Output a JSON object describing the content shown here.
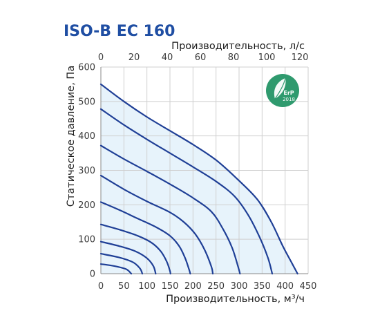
{
  "chart_data": {
    "type": "line",
    "title": "ISO-B EC 160",
    "xlabel": "Производительность, м³/ч",
    "x2label": "Производительность, л/с",
    "ylabel": "Статическое давление, Па",
    "xlim": [
      0,
      450
    ],
    "x2lim": [
      0,
      125
    ],
    "ylim": [
      0,
      600
    ],
    "xticks": [
      0,
      50,
      100,
      150,
      200,
      250,
      300,
      350,
      400,
      450
    ],
    "x2ticks": [
      0,
      20,
      40,
      60,
      80,
      100,
      120
    ],
    "yticks": [
      0,
      100,
      200,
      300,
      400,
      500,
      600
    ],
    "grid": true,
    "series": [
      {
        "points": [
          [
            0,
            550
          ],
          [
            50,
            500
          ],
          [
            100,
            455
          ],
          [
            150,
            415
          ],
          [
            200,
            375
          ],
          [
            250,
            330
          ],
          [
            300,
            270
          ],
          [
            340,
            215
          ],
          [
            370,
            150
          ],
          [
            395,
            80
          ],
          [
            415,
            30
          ],
          [
            427,
            0
          ]
        ]
      },
      {
        "points": [
          [
            0,
            478
          ],
          [
            50,
            432
          ],
          [
            100,
            390
          ],
          [
            150,
            350
          ],
          [
            200,
            310
          ],
          [
            250,
            268
          ],
          [
            290,
            225
          ],
          [
            320,
            170
          ],
          [
            345,
            105
          ],
          [
            363,
            45
          ],
          [
            372,
            0
          ]
        ]
      },
      {
        "points": [
          [
            0,
            372
          ],
          [
            50,
            333
          ],
          [
            100,
            297
          ],
          [
            150,
            260
          ],
          [
            200,
            220
          ],
          [
            240,
            180
          ],
          [
            265,
            130
          ],
          [
            285,
            75
          ],
          [
            298,
            20
          ],
          [
            302,
            0
          ]
        ]
      },
      {
        "points": [
          [
            0,
            285
          ],
          [
            50,
            245
          ],
          [
            100,
            210
          ],
          [
            150,
            178
          ],
          [
            180,
            150
          ],
          [
            205,
            115
          ],
          [
            225,
            70
          ],
          [
            240,
            20
          ],
          [
            243,
            0
          ]
        ]
      },
      {
        "points": [
          [
            0,
            208
          ],
          [
            40,
            185
          ],
          [
            80,
            160
          ],
          [
            120,
            135
          ],
          [
            150,
            110
          ],
          [
            170,
            80
          ],
          [
            183,
            45
          ],
          [
            192,
            10
          ],
          [
            194,
            0
          ]
        ]
      },
      {
        "points": [
          [
            0,
            143
          ],
          [
            40,
            128
          ],
          [
            80,
            110
          ],
          [
            110,
            90
          ],
          [
            130,
            65
          ],
          [
            143,
            35
          ],
          [
            150,
            8
          ],
          [
            151,
            0
          ]
        ]
      },
      {
        "points": [
          [
            0,
            93
          ],
          [
            40,
            80
          ],
          [
            75,
            65
          ],
          [
            100,
            45
          ],
          [
            114,
            22
          ],
          [
            119,
            0
          ]
        ]
      },
      {
        "points": [
          [
            0,
            58
          ],
          [
            40,
            47
          ],
          [
            70,
            33
          ],
          [
            85,
            15
          ],
          [
            90,
            0
          ]
        ]
      },
      {
        "points": [
          [
            0,
            28
          ],
          [
            30,
            22
          ],
          [
            55,
            13
          ],
          [
            66,
            0
          ]
        ]
      }
    ],
    "badge": {
      "label": "ErP",
      "year": "2018",
      "color": "#2f9a6e"
    },
    "colors": {
      "title": "#1f4ea3",
      "curve": "#1f3f96",
      "fill": "#e7f3fb"
    }
  }
}
